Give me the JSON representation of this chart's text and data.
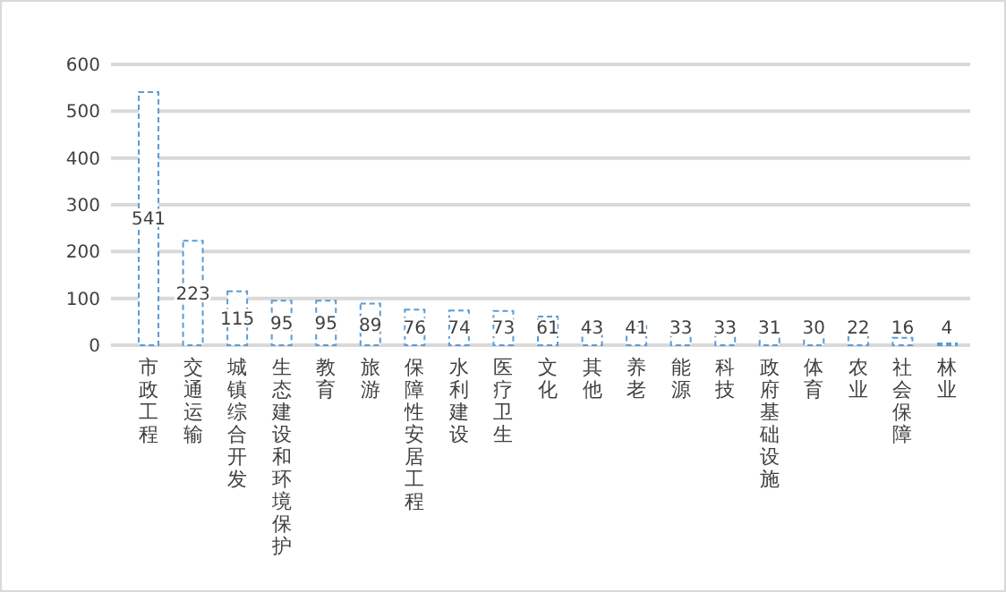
{
  "chart_data": {
    "type": "bar",
    "categories": [
      "市政工程",
      "交通运输",
      "城镇综合开发",
      "生态建设和环境保护",
      "教育",
      "旅游",
      "保障性安居工程",
      "水利建设",
      "医疗卫生",
      "文化",
      "其他",
      "养老",
      "能源",
      "科技",
      "政府基础设施",
      "体育",
      "农业",
      "社会保障",
      "林业"
    ],
    "values": [
      541,
      223,
      115,
      95,
      95,
      89,
      76,
      74,
      73,
      61,
      43,
      41,
      33,
      33,
      31,
      30,
      22,
      16,
      4
    ],
    "color": "#5b9bd5",
    "ylim": [
      0,
      600
    ],
    "yticks": [
      0,
      100,
      200,
      300,
      400,
      500,
      600
    ],
    "grid": "y",
    "data_labels": true,
    "line_style": "dashed"
  }
}
